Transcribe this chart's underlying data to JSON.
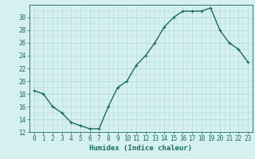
{
  "x": [
    0,
    1,
    2,
    3,
    4,
    5,
    6,
    7,
    8,
    9,
    10,
    11,
    12,
    13,
    14,
    15,
    16,
    17,
    18,
    19,
    20,
    21,
    22,
    23
  ],
  "y": [
    18.5,
    18,
    16,
    15,
    13.5,
    13,
    12.5,
    12.5,
    16,
    19,
    20,
    22.5,
    24,
    26,
    28.5,
    30,
    31,
    31,
    31,
    31.5,
    28,
    26,
    25,
    23
  ],
  "line_color": "#1a6b5a",
  "marker": "+",
  "marker_size": 3,
  "bg_color": "#d6f0f0",
  "grid_color": "#b0d8d8",
  "xlabel": "Humidex (Indice chaleur)",
  "ylim": [
    12,
    32
  ],
  "xlim": [
    -0.5,
    23.5
  ],
  "yticks": [
    12,
    14,
    16,
    18,
    20,
    22,
    24,
    26,
    28,
    30
  ],
  "xticks": [
    0,
    1,
    2,
    3,
    4,
    5,
    6,
    7,
    8,
    9,
    10,
    11,
    12,
    13,
    14,
    15,
    16,
    17,
    18,
    19,
    20,
    21,
    22,
    23
  ],
  "tick_color": "#1a6b5a",
  "label_fontsize": 6.5,
  "tick_fontsize": 5.5,
  "linewidth": 1.0,
  "marker_linewidth": 0.8
}
